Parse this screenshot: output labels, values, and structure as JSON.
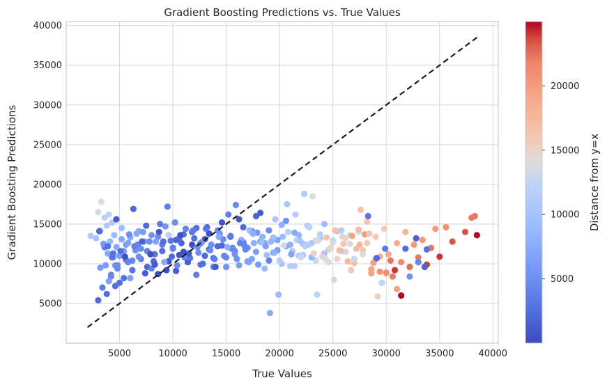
{
  "chart_data": {
    "type": "scatter",
    "title": "Gradient Boosting Predictions vs. True Values",
    "xlabel": "True Values",
    "ylabel": "Gradient Boosting Predictions",
    "xlim": [
      0,
      40500
    ],
    "ylim": [
      0,
      40500
    ],
    "x_ticks": [
      "5000",
      "10000",
      "15000",
      "20000",
      "25000",
      "30000",
      "35000",
      "40000"
    ],
    "y_ticks": [
      "5000",
      "10000",
      "15000",
      "20000",
      "25000",
      "30000",
      "35000",
      "40000"
    ],
    "grid": true,
    "colormap": "coolwarm",
    "colorbar": {
      "label": "Distance from y=x",
      "range": [
        0,
        25000
      ],
      "ticks": [
        "5000",
        "10000",
        "15000",
        "20000"
      ]
    },
    "reference_line": {
      "label": "y=x",
      "from": [
        2000,
        2000
      ],
      "to": [
        38500,
        38500
      ],
      "style": "dashed",
      "color": "#1a1a1a"
    },
    "points_x": [
      2300,
      2800,
      3000,
      3200,
      3300,
      3500,
      3600,
      3700,
      3800,
      3900,
      4000,
      4100,
      4200,
      4300,
      4400,
      4500,
      4600,
      4700,
      4800,
      5000,
      5200,
      5400,
      5600,
      5800,
      6000,
      6200,
      6500,
      6800,
      7000,
      7300,
      7600,
      8000,
      8300,
      8600,
      9000,
      9300,
      9600,
      10000,
      10300,
      10600,
      11000,
      11400,
      11800,
      12200,
      12600,
      13000,
      13400,
      13800,
      14200,
      14600,
      15000,
      15400,
      15800,
      16200,
      16600,
      17000,
      17400,
      17800,
      18200,
      18600,
      19000,
      19400,
      19800,
      20200,
      20600,
      21000,
      21400,
      21800,
      22200,
      22600,
      23000,
      23400,
      23800,
      24200,
      24600,
      25000,
      25400,
      25800,
      26200,
      26600,
      27000,
      27400,
      27800,
      28200,
      28600,
      29000,
      29400,
      29800,
      30200,
      30600,
      31000,
      31400,
      31800,
      32200,
      32600,
      33000,
      33400,
      33800,
      34200,
      34600,
      35000,
      35600,
      36200,
      37400,
      38000,
      38300,
      38500,
      3000,
      3400,
      3800,
      4200,
      4600,
      5000,
      5400,
      5800,
      6200,
      6600,
      7000,
      7400,
      7800,
      8200,
      8600,
      9000,
      9400,
      9800,
      10200,
      10600,
      11000,
      11400,
      11800,
      12200,
      12600,
      13000,
      13400,
      13800,
      14200,
      14600,
      15000,
      15400,
      15800,
      16200,
      16600,
      17000,
      17400,
      17800,
      18200,
      18600,
      19000,
      19400,
      19800,
      20200,
      20600,
      21000,
      21400,
      21800,
      22200,
      22600,
      23000,
      23400,
      23800,
      24200,
      24600,
      25000,
      25400,
      25800,
      26200,
      26600,
      27000,
      27400,
      27800,
      28200,
      28600,
      29000,
      29400,
      30000,
      30800,
      31400,
      32200,
      33000,
      33800,
      3200,
      3600,
      4000,
      4400,
      4800,
      5200,
      5600,
      6000,
      6400,
      6800,
      7200,
      7600,
      8000,
      8400,
      8800,
      9200,
      9600,
      10000,
      10400,
      10800,
      11200,
      11600,
      12000,
      12400,
      12800,
      13200,
      13600,
      14000,
      14400,
      14800,
      15200,
      15600,
      16000,
      16400,
      16800,
      17200,
      17600,
      18000,
      18400,
      18800,
      19200,
      19600,
      20000,
      20400,
      20800,
      21200,
      21600,
      22000,
      22400,
      22800,
      23200,
      23600,
      24000,
      24400,
      24800,
      25200,
      25600,
      26000,
      26400,
      26800,
      27200,
      27600,
      28000,
      28400,
      28800,
      29200,
      29600,
      30000,
      30400,
      31000,
      31800,
      32800,
      33600,
      3500,
      4300,
      5100,
      5900,
      6700,
      7500,
      8300,
      9100,
      9900,
      10700,
      11500,
      12300,
      13100,
      13900,
      14700,
      15500,
      16300,
      17100,
      17900,
      18700,
      19500,
      20300,
      21100,
      21900,
      22700,
      23500,
      24300,
      25100,
      25900,
      26700,
      27500,
      28300,
      29100,
      29900,
      3100,
      3900,
      4700,
      5500,
      6300,
      7100,
      7900,
      8700,
      9500,
      10300,
      11100,
      11900,
      12700,
      13500,
      14300,
      15100,
      15900,
      16700,
      17500,
      18300,
      19100,
      19900,
      20700,
      21500,
      22300,
      23100,
      23900,
      24700,
      25500,
      26300,
      27100,
      27900,
      28700,
      9800,
      12400,
      4200,
      5100,
      6400,
      7800
    ],
    "points_y": [
      13500,
      13200,
      16500,
      14200,
      17800,
      12500,
      15800,
      9800,
      14800,
      11300,
      16200,
      12800,
      8600,
      15200,
      10800,
      13600,
      7200,
      12100,
      9400,
      11000,
      14500,
      8200,
      12400,
      10200,
      13300,
      9200,
      11700,
      14100,
      10600,
      12800,
      9600,
      13600,
      11200,
      8700,
      12400,
      14700,
      10300,
      12000,
      9100,
      13200,
      11500,
      10200,
      14000,
      8600,
      12600,
      11000,
      13800,
      9600,
      12200,
      15200,
      10800,
      13400,
      11600,
      9800,
      14600,
      12000,
      10600,
      16000,
      12800,
      9400,
      14200,
      11400,
      13000,
      10000,
      15400,
      12400,
      9700,
      13600,
      11100,
      14800,
      12600,
      10400,
      13200,
      15000,
      11800,
      12900,
      10600,
      14200,
      11500,
      13600,
      10100,
      14000,
      11700,
      12600,
      9300,
      13400,
      10900,
      14400,
      11200,
      8400,
      12600,
      10200,
      14000,
      9600,
      12400,
      10800,
      13000,
      9900,
      12000,
      14400,
      10900,
      14600,
      12800,
      14000,
      15800,
      16000,
      13600,
      5400,
      7000,
      6200,
      8400,
      9800,
      7600,
      11600,
      12600,
      10400,
      13800,
      11900,
      8800,
      12800,
      10300,
      13400,
      11600,
      9200,
      12900,
      15200,
      11100,
      13700,
      10500,
      12400,
      14500,
      9900,
      13100,
      11800,
      10700,
      14200,
      12300,
      9600,
      13500,
      11200,
      15600,
      12700,
      10300,
      14100,
      11500,
      16400,
      12600,
      10400,
      13300,
      11700,
      14900,
      12200,
      9700,
      13900,
      11000,
      12500,
      14800,
      10800,
      12900,
      13700,
      11300,
      10200,
      12700,
      14100,
      11600,
      13200,
      12500,
      10600,
      14300,
      11200,
      15300,
      8800,
      10600,
      9000,
      8800,
      9200,
      6000,
      8400,
      10200,
      11800,
      9500,
      12100,
      7800,
      11300,
      9800,
      13100,
      10500,
      8200,
      12200,
      10900,
      14000,
      11600,
      9400,
      12800,
      15000,
      10200,
      13600,
      11900,
      9800,
      12600,
      14400,
      10700,
      13200,
      11400,
      10000,
      14600,
      12400,
      9600,
      13800,
      11000,
      16200,
      12000,
      10600,
      13000,
      11800,
      14200,
      12600,
      9900,
      13400,
      11100,
      12800,
      15600,
      10400,
      12300,
      14000,
      11600,
      13000,
      10800,
      12200,
      14600,
      11300,
      12900,
      10900,
      13300,
      12000,
      14200,
      11700,
      12500,
      10300,
      13500,
      11900,
      16800,
      13700,
      13800,
      10100,
      5900,
      7600,
      8900,
      10400,
      6800,
      11900,
      13200,
      9600,
      12500,
      10800,
      11600,
      13700,
      12400,
      14800,
      9900,
      12800,
      10900,
      13600,
      11300,
      12100,
      14400,
      10600,
      13100,
      11900,
      12600,
      10200,
      13900,
      12200,
      11400,
      13400,
      11200,
      12900,
      12400,
      6100,
      10600,
      8000,
      13400,
      9200,
      12400,
      16000,
      10700,
      11900,
      14100,
      12200,
      15600,
      10900,
      16900,
      12800,
      11200,
      14000,
      17200,
      13000,
      10800,
      14200,
      12700,
      11700,
      13400,
      12100,
      17400,
      12300,
      13800,
      12700,
      3800,
      6100,
      17500,
      16200,
      18800,
      18500
    ],
    "point_distances": [
      11200,
      10400,
      13500,
      11000,
      14300,
      9000,
      12200,
      6100,
      11000,
      7400,
      12200,
      8700,
      4400,
      10900,
      6400,
      9100,
      2600,
      7400,
      4600,
      6000,
      9300,
      2800,
      6800,
      4400,
      7300,
      3000,
      5200,
      7300,
      3600,
      5500,
      2000,
      5600,
      2900,
      100,
      3400,
      5400,
      700,
      2000,
      1200,
      2600,
      500,
      1200,
      2200,
      3600,
      0,
      2000,
      400,
      4200,
      2000,
      600,
      4200,
      2000,
      4200,
      6400,
      2000,
      5000,
      6800,
      1800,
      5400,
      9200,
      4800,
      8000,
      6800,
      10200,
      5200,
      8600,
      11700,
      8200,
      11100,
      7800,
      10400,
      13000,
      10600,
      9200,
      12800,
      12100,
      14800,
      11600,
      14700,
      13000,
      16900,
      13400,
      16100,
      15600,
      19300,
      15600,
      18500,
      15400,
      19000,
      22200,
      18400,
      21200,
      17800,
      22600,
      20200,
      22200,
      20400,
      23900,
      22200,
      20200,
      24100,
      21000,
      23400,
      23400,
      22200,
      22300,
      24900,
      2400,
      3600,
      2400,
      4200,
      5200,
      2600,
      6200,
      6800,
      4200,
      7200,
      4900,
      1400,
      5000,
      2100,
      4800,
      2600,
      200,
      3100,
      5000,
      500,
      2700,
      900,
      600,
      2300,
      2700,
      500,
      1800,
      2100,
      4600,
      2100,
      5400,
      3700,
      5500,
      1000,
      2900,
      6600,
      2900,
      6200,
      1000,
      6900,
      4100,
      9600,
      5900,
      8100,
      7200,
      11700,
      7500,
      10900,
      9900,
      11800,
      8700,
      12800,
      11900,
      10300,
      13700,
      13500,
      11000,
      12000,
      14600,
      14200,
      13100,
      16900,
      14300,
      16000,
      19500,
      19000,
      20800,
      18000,
      24000,
      25400,
      5200,
      4200,
      2800,
      6200,
      3300,
      6400,
      2800,
      4800,
      7300,
      3900,
      6500,
      3600,
      5000,
      6000,
      3800,
      4100,
      6600,
      3400,
      7600,
      12100,
      4000,
      4600,
      1900,
      4200,
      2800,
      2600,
      5000,
      2600,
      2300,
      5000,
      1300,
      5600,
      4200,
      3700,
      4100,
      5200,
      7700,
      4300,
      9000,
      7800,
      6000,
      8200,
      9600,
      8600,
      10400,
      11600,
      13300,
      11700,
      10800,
      12200,
      13000,
      11900,
      12100,
      15100,
      13800,
      15100,
      16300,
      14700,
      16500,
      17100,
      15900,
      17400,
      19300,
      17300,
      16600,
      20300,
      16300,
      19800,
      15000,
      12300,
      21000,
      22300,
      19600,
      2400,
      1600,
      1700,
      5600,
      2900,
      2600,
      4900,
      4200,
      2300,
      1100,
      2500,
      2300,
      700,
      1000,
      5000,
      3100,
      3500,
      4600,
      4500,
      3800,
      6600,
      5600,
      6300,
      8000,
      9400,
      6700,
      10200,
      11400,
      12300,
      13700,
      13500,
      14800,
      15800,
      17500,
      3000,
      2200,
      3300,
      2000,
      2600,
      1000,
      400,
      2000,
      1800,
      200,
      900,
      3700,
      1800,
      4100,
      3400,
      5300,
      4700,
      7500,
      7800,
      4600,
      4300,
      8000,
      9500,
      7700,
      9000,
      10600,
      11500,
      11200,
      14000,
      12000,
      10400,
      14400,
      15700,
      6000,
      6300,
      13300,
      11100,
      12400,
      10700
    ]
  }
}
